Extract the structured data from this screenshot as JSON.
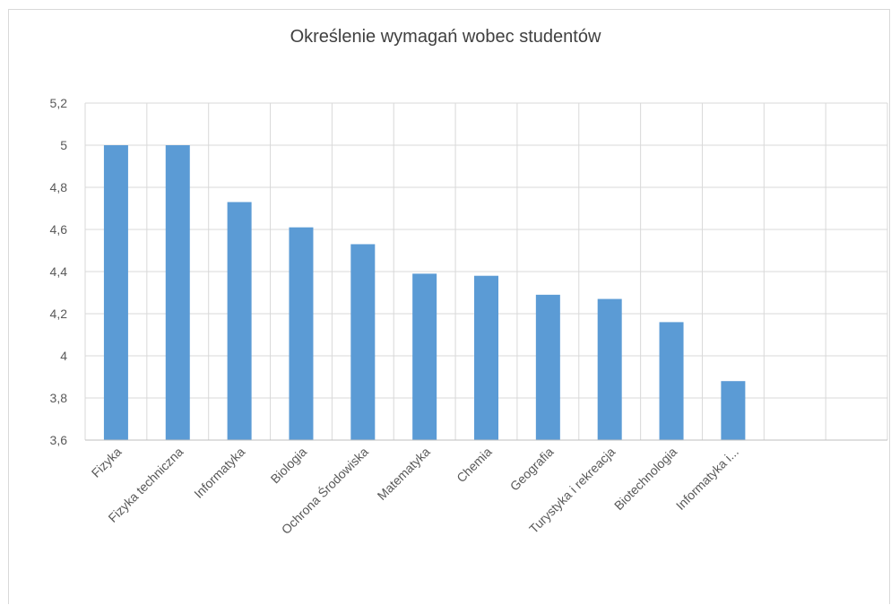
{
  "chart_data": {
    "type": "bar",
    "title": "Określenie wymagań wobec studentów",
    "categories": [
      "Fizyka",
      "Fizyka techniczna",
      "Informatyka",
      "Biologia",
      "Ochrona Środowiska",
      "Matematyka",
      "Chemia",
      "Geografia",
      "Turystyka i rekreacja",
      "Biotechnologia",
      "Informatyka i...",
      "",
      ""
    ],
    "values": [
      5.0,
      5.0,
      4.73,
      4.61,
      4.53,
      4.39,
      4.38,
      4.29,
      4.27,
      4.16,
      3.88,
      null,
      null
    ],
    "ylim": [
      3.6,
      5.2
    ],
    "yticks": [
      "3,6",
      "3,8",
      "4",
      "4,2",
      "4,4",
      "4,6",
      "4,8",
      "5",
      "5,2"
    ],
    "grid": true,
    "bar_color": "#5b9bd5"
  }
}
